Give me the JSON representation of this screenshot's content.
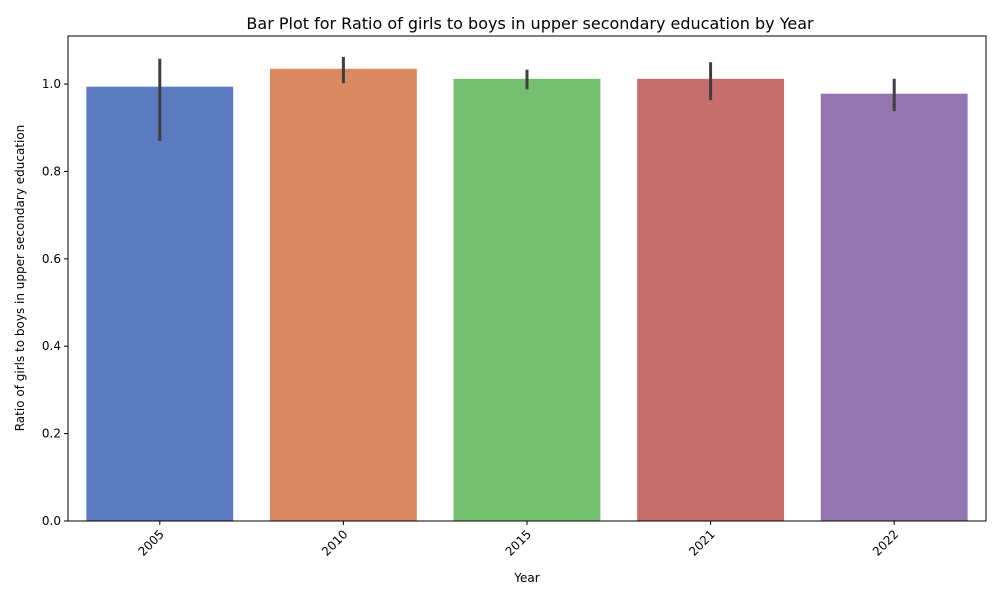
{
  "chart_data": {
    "type": "bar",
    "title": "Bar Plot for Ratio of girls to boys in upper secondary education by Year",
    "xlabel": "Year",
    "ylabel": "Ratio of girls to boys in upper secondary education",
    "categories": [
      "2005",
      "2010",
      "2015",
      "2021",
      "2022"
    ],
    "values": [
      0.994,
      1.035,
      1.012,
      1.012,
      0.978
    ],
    "error_low": [
      0.87,
      1.002,
      0.988,
      0.963,
      0.938
    ],
    "error_high": [
      1.058,
      1.062,
      1.033,
      1.05,
      1.012
    ],
    "colors": [
      "#5b7bc1",
      "#d98a60",
      "#75c070",
      "#c66d6e",
      "#9476ae"
    ],
    "error_color": "#3f3f3f",
    "ylim": [
      0,
      1.11
    ],
    "yticks": [
      0.0,
      0.2,
      0.4,
      0.6,
      0.8,
      1.0
    ],
    "ytick_labels": [
      "0.0",
      "0.2",
      "0.4",
      "0.6",
      "0.8",
      "1.0"
    ],
    "grid": false,
    "legend": "none"
  }
}
